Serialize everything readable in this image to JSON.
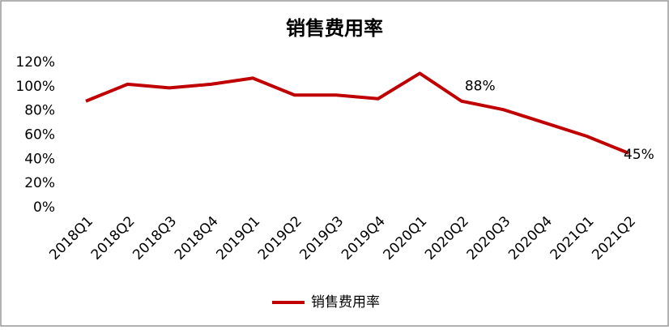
{
  "chart_data": {
    "type": "line",
    "title": "销售费用率",
    "categories": [
      "2018Q1",
      "2018Q2",
      "2018Q3",
      "2018Q4",
      "2019Q1",
      "2019Q2",
      "2019Q3",
      "2019Q4",
      "2020Q1",
      "2020Q2",
      "2020Q3",
      "2020Q4",
      "2021Q1",
      "2021Q2"
    ],
    "series": [
      {
        "name": "销售费用率",
        "color": "#c00000",
        "values": [
          88,
          102,
          99,
          102,
          107,
          93,
          93,
          90,
          111,
          88,
          81,
          70,
          59,
          45
        ],
        "value_labels": [
          null,
          null,
          null,
          null,
          null,
          null,
          null,
          null,
          null,
          "88%",
          null,
          null,
          null,
          "45%"
        ]
      }
    ],
    "ylim": [
      0,
      120
    ],
    "yticks": [
      {
        "value": 0,
        "label": "0%"
      },
      {
        "value": 20,
        "label": "20%"
      },
      {
        "value": 40,
        "label": "40%"
      },
      {
        "value": 60,
        "label": "60%"
      },
      {
        "value": 80,
        "label": "80%"
      },
      {
        "value": 100,
        "label": "100%"
      },
      {
        "value": 120,
        "label": "120%"
      }
    ],
    "grid": false,
    "legend": "bottom"
  }
}
